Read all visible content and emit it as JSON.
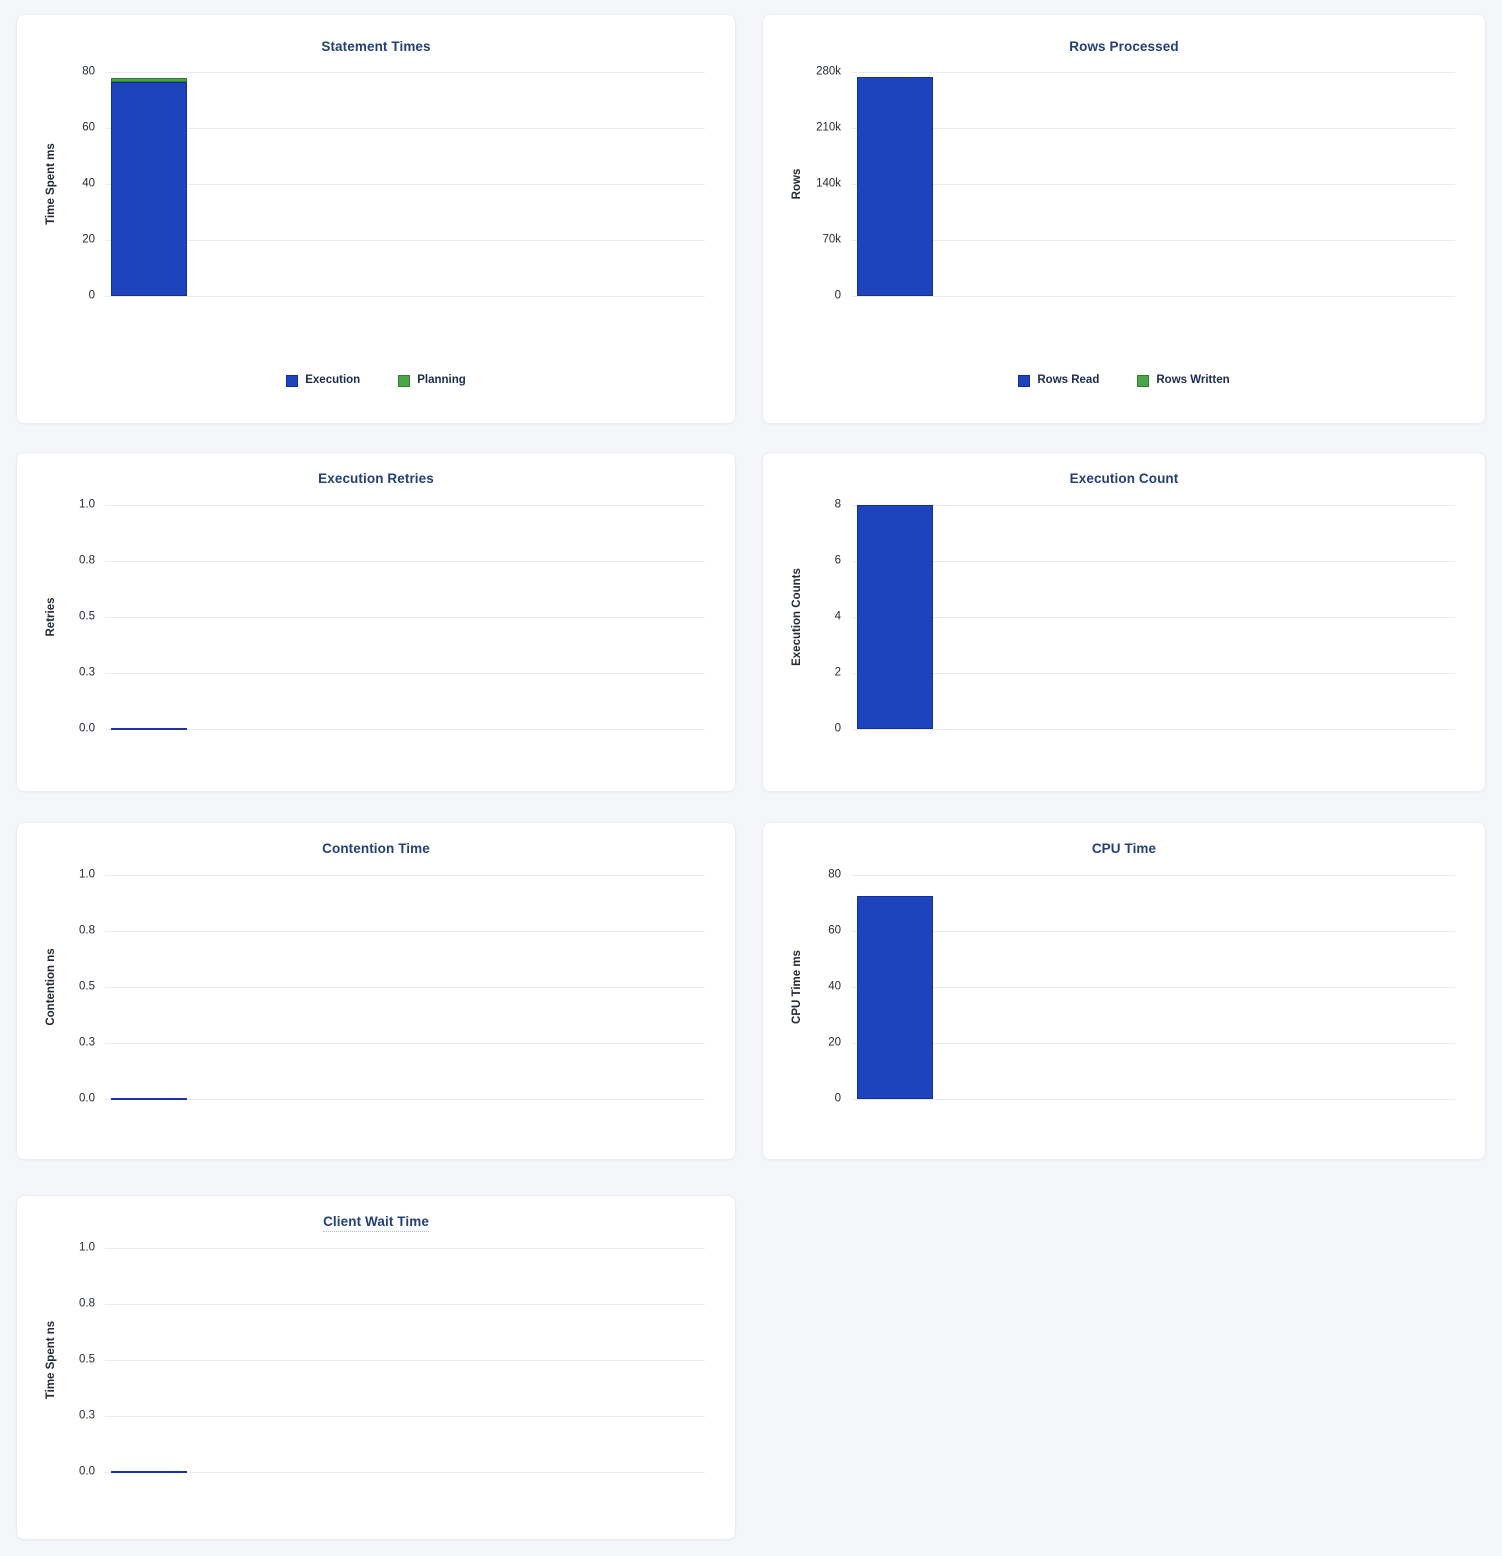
{
  "page": {
    "background_color": "#f4f6fa",
    "card_background_color": "#ffffff"
  },
  "colors": {
    "bar_blue": "#1d44ba",
    "bar_blue_border": "#132c96",
    "bar_green": "#4aa747",
    "bar_green_border": "#337d30",
    "zero_line_blue": "#1c32a8",
    "gridline": "#e9ebef",
    "title_text": "#234077",
    "axis_text": "#242a35"
  },
  "chart_data": [
    {
      "type": "bar",
      "stacked": true,
      "title": "Statement Times",
      "ylabel": "Time Spent ms",
      "ylim": [
        0,
        80
      ],
      "yticks": [
        0,
        20,
        40,
        60,
        80
      ],
      "ytick_labels": [
        "80",
        "60",
        "40",
        "20",
        "0"
      ],
      "categories": [
        ""
      ],
      "grid": true,
      "legend_position": "bottom",
      "series": [
        {
          "name": "Execution",
          "value": 76.5,
          "color": "#1d44ba",
          "border": "#132c96"
        },
        {
          "name": "Planning",
          "value": 1.3,
          "color": "#4aa747",
          "border": "#337d30"
        }
      ],
      "show_legend": true,
      "title_tooltip_underline": false
    },
    {
      "type": "bar",
      "stacked": true,
      "title": "Rows Processed",
      "ylabel": "Rows",
      "ylim": [
        0,
        280000
      ],
      "yticks": [
        0,
        70000,
        140000,
        210000,
        280000
      ],
      "ytick_labels": [
        "280k",
        "210k",
        "140k",
        "70k",
        "0"
      ],
      "categories": [
        ""
      ],
      "grid": true,
      "legend_position": "bottom",
      "series": [
        {
          "name": "Rows Read",
          "value": 274000,
          "color": "#1d44ba",
          "border": "#132c96"
        },
        {
          "name": "Rows Written",
          "value": 0,
          "color": "#4aa747",
          "border": "#337d30"
        }
      ],
      "show_legend": true,
      "title_tooltip_underline": false
    },
    {
      "type": "bar",
      "stacked": false,
      "title": "Execution Retries",
      "ylabel": "Retries",
      "ylim": [
        0,
        1
      ],
      "yticks": [
        0,
        0.25,
        0.5,
        0.75,
        1.0
      ],
      "ytick_labels": [
        "1.0",
        "0.8",
        "0.5",
        "0.3",
        "0.0"
      ],
      "categories": [
        ""
      ],
      "grid": true,
      "legend_position": "none",
      "series": [
        {
          "name": "Retries",
          "value": 0,
          "color": "#1d44ba",
          "border": "#132c96"
        }
      ],
      "show_legend": false,
      "title_tooltip_underline": false
    },
    {
      "type": "bar",
      "stacked": false,
      "title": "Execution Count",
      "ylabel": "Execution Counts",
      "ylim": [
        0,
        8
      ],
      "yticks": [
        0,
        2,
        4,
        6,
        8
      ],
      "ytick_labels": [
        "8",
        "6",
        "4",
        "2",
        "0"
      ],
      "categories": [
        ""
      ],
      "grid": true,
      "legend_position": "none",
      "series": [
        {
          "name": "Execution Count",
          "value": 8,
          "color": "#1d44ba",
          "border": "#132c96"
        }
      ],
      "show_legend": false,
      "title_tooltip_underline": false
    },
    {
      "type": "bar",
      "stacked": false,
      "title": "Contention Time",
      "ylabel": "Contention ns",
      "ylim": [
        0,
        1
      ],
      "yticks": [
        0,
        0.25,
        0.5,
        0.75,
        1.0
      ],
      "ytick_labels": [
        "1.0",
        "0.8",
        "0.5",
        "0.3",
        "0.0"
      ],
      "categories": [
        ""
      ],
      "grid": true,
      "legend_position": "none",
      "series": [
        {
          "name": "Contention",
          "value": 0,
          "color": "#1d44ba",
          "border": "#132c96"
        }
      ],
      "show_legend": false,
      "title_tooltip_underline": false
    },
    {
      "type": "bar",
      "stacked": false,
      "title": "CPU Time",
      "ylabel": "CPU Time ms",
      "ylim": [
        0,
        80
      ],
      "yticks": [
        0,
        20,
        40,
        60,
        80
      ],
      "ytick_labels": [
        "80",
        "60",
        "40",
        "20",
        "0"
      ],
      "categories": [
        ""
      ],
      "grid": true,
      "legend_position": "none",
      "series": [
        {
          "name": "CPU Time",
          "value": 72.5,
          "color": "#1d44ba",
          "border": "#132c96"
        }
      ],
      "show_legend": false,
      "title_tooltip_underline": false
    },
    {
      "type": "bar",
      "stacked": false,
      "title": "Client Wait Time",
      "ylabel": "Time Spent ns",
      "ylim": [
        0,
        1
      ],
      "yticks": [
        0,
        0.25,
        0.5,
        0.75,
        1.0
      ],
      "ytick_labels": [
        "1.0",
        "0.8",
        "0.5",
        "0.3",
        "0.0"
      ],
      "categories": [
        ""
      ],
      "grid": true,
      "legend_position": "none",
      "series": [
        {
          "name": "Client Wait",
          "value": 0,
          "color": "#1d44ba",
          "border": "#132c96"
        }
      ],
      "show_legend": false,
      "title_tooltip_underline": true
    }
  ]
}
